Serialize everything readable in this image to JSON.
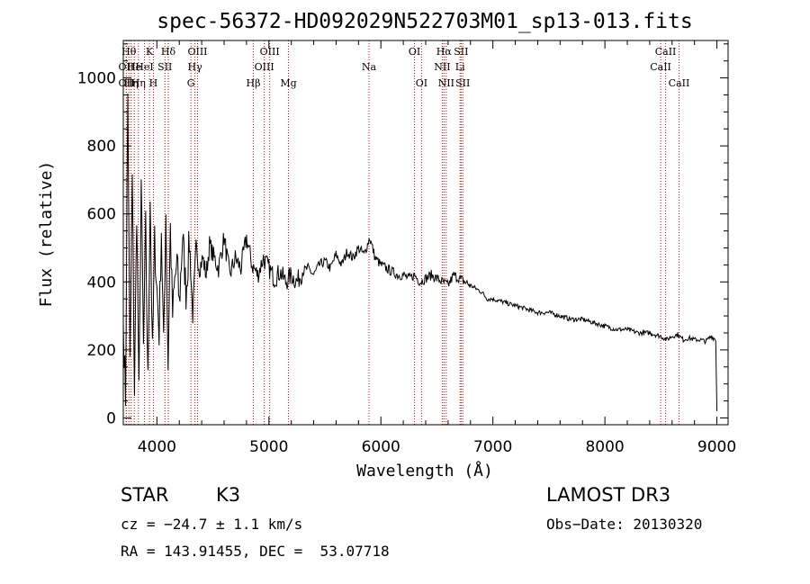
{
  "chart_data": {
    "type": "line",
    "title": "spec-56372-HD092029N522703M01_sp13-013.fits",
    "xlabel": "Wavelength (Å)",
    "ylabel": "Flux (relative)",
    "xlim": [
      3700,
      9100
    ],
    "ylim": [
      -20,
      1110
    ],
    "xticks": [
      4000,
      5000,
      6000,
      7000,
      8000,
      9000
    ],
    "yticks": [
      0,
      200,
      400,
      600,
      800,
      1000
    ],
    "line_color": "#000000",
    "marker_color": "#cc0000",
    "spectrum": {
      "name": "flux",
      "x": [
        3700,
        3720,
        3740,
        3760,
        3780,
        3800,
        3820,
        3840,
        3860,
        3880,
        3900,
        3920,
        3940,
        3960,
        3980,
        4000,
        4020,
        4040,
        4060,
        4080,
        4100,
        4120,
        4140,
        4160,
        4180,
        4200,
        4230,
        4260,
        4290,
        4320,
        4350,
        4380,
        4410,
        4440,
        4470,
        4500,
        4550,
        4600,
        4650,
        4700,
        4750,
        4800,
        4850,
        4900,
        4950,
        5000,
        5050,
        5100,
        5150,
        5200,
        5250,
        5300,
        5350,
        5400,
        5450,
        5500,
        5550,
        5600,
        5650,
        5700,
        5750,
        5800,
        5850,
        5900,
        5950,
        6000,
        6050,
        6100,
        6150,
        6200,
        6250,
        6300,
        6350,
        6400,
        6450,
        6500,
        6550,
        6600,
        6650,
        6700,
        6750,
        6800,
        6850,
        6900,
        6950,
        7000,
        7100,
        7200,
        7300,
        7400,
        7500,
        7600,
        7700,
        7800,
        7900,
        8000,
        8100,
        8200,
        8300,
        8400,
        8500,
        8550,
        8600,
        8650,
        8700,
        8750,
        8800,
        8850,
        8900,
        8950,
        8990,
        9000
      ],
      "y": [
        280,
        60,
        950,
        150,
        700,
        80,
        620,
        60,
        700,
        200,
        560,
        100,
        660,
        180,
        520,
        380,
        250,
        560,
        200,
        610,
        150,
        560,
        300,
        400,
        460,
        330,
        540,
        370,
        520,
        300,
        500,
        440,
        470,
        420,
        510,
        480,
        440,
        530,
        420,
        470,
        440,
        530,
        450,
        420,
        470,
        440,
        410,
        430,
        400,
        420,
        400,
        430,
        440,
        420,
        450,
        460,
        440,
        480,
        450,
        490,
        470,
        500,
        480,
        530,
        470,
        450,
        440,
        430,
        420,
        420,
        410,
        420,
        400,
        410,
        420,
        410,
        400,
        390,
        420,
        410,
        400,
        390,
        380,
        370,
        350,
        350,
        340,
        330,
        320,
        310,
        310,
        300,
        290,
        290,
        280,
        270,
        260,
        260,
        250,
        250,
        240,
        230,
        240,
        245,
        230,
        235,
        230,
        230,
        225,
        240,
        230,
        20
      ]
    },
    "lines": [
      {
        "x": 3727,
        "label": "OII",
        "row": 1
      },
      {
        "x": 3727,
        "label": "OII",
        "row": 2
      },
      {
        "x": 3750,
        "label": "Hθ",
        "row": 0
      },
      {
        "x": 3770,
        "label": "Hη",
        "row": 2
      },
      {
        "x": 3798,
        "label": "He",
        "row": 1
      },
      {
        "x": 3835,
        "label": "Hη",
        "row": 2
      },
      {
        "x": 3889,
        "label": "HeI",
        "row": 1
      },
      {
        "x": 3934,
        "label": "K",
        "row": 0
      },
      {
        "x": 3969,
        "label": "H",
        "row": 2
      },
      {
        "x": 4072,
        "label": "SII",
        "row": 1
      },
      {
        "x": 4102,
        "label": "Hδ",
        "row": 0
      },
      {
        "x": 4304,
        "label": "G",
        "row": 2
      },
      {
        "x": 4340,
        "label": "Hγ",
        "row": 1
      },
      {
        "x": 4363,
        "label": "OIII",
        "row": 0
      },
      {
        "x": 4861,
        "label": "Hβ",
        "row": 2
      },
      {
        "x": 4959,
        "label": "OIII",
        "row": 1
      },
      {
        "x": 5007,
        "label": "OIII",
        "row": 0
      },
      {
        "x": 5175,
        "label": "Mg",
        "row": 2
      },
      {
        "x": 5894,
        "label": "Na",
        "row": 1
      },
      {
        "x": 6300,
        "label": "OI",
        "row": 0
      },
      {
        "x": 6363,
        "label": "OI",
        "row": 2
      },
      {
        "x": 6548,
        "label": "NII",
        "row": 1
      },
      {
        "x": 6563,
        "label": "Hα",
        "row": 0
      },
      {
        "x": 6583,
        "label": "NII",
        "row": 2
      },
      {
        "x": 6707,
        "label": "Li",
        "row": 1
      },
      {
        "x": 6716,
        "label": "SII",
        "row": 0
      },
      {
        "x": 6731,
        "label": "SII",
        "row": 2
      },
      {
        "x": 8498,
        "label": "CaII",
        "row": 1
      },
      {
        "x": 8542,
        "label": "CaII",
        "row": 0
      },
      {
        "x": 8662,
        "label": "CaII",
        "row": 2
      }
    ]
  },
  "info": {
    "class_label": "STAR",
    "subclass": "K3",
    "survey": "LAMOST DR3",
    "redshift_text": "cz = −24.7 ± 1.1 km/s",
    "obs_date_text": "Obs−Date: 20130320",
    "coords_text": "RA = 143.91455, DEC =  53.07718"
  }
}
